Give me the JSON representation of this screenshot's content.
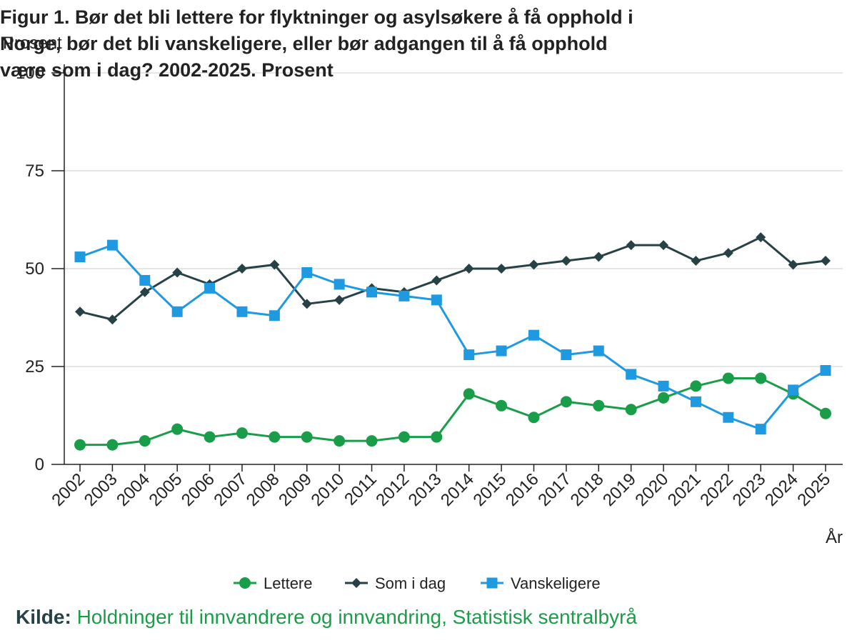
{
  "title": "Figur 1. Bør det bli lettere for flyktninger og asylsøkere å få opphold i Norge, bør det bli vanskeligere, eller bør adgangen til å få opphold være som i dag? 2002-2025. Prosent",
  "source": {
    "label": "Kilde:",
    "text": "Holdninger til innvandrere og innvandring, Statistisk sentralbyrå"
  },
  "chart_data": {
    "type": "line",
    "ylabel": "Prosent",
    "xlabel": "År",
    "ylim": [
      0,
      100
    ],
    "y_ticks": [
      0,
      25,
      50,
      75,
      100
    ],
    "grid": true,
    "legend_position": "bottom",
    "categories": [
      "2002",
      "2003",
      "2004",
      "2005",
      "2006",
      "2007",
      "2008",
      "2009",
      "2010",
      "2011",
      "2012",
      "2013",
      "2014",
      "2015",
      "2016",
      "2017",
      "2018",
      "2019",
      "2020",
      "2021",
      "2022",
      "2023",
      "2024",
      "2025"
    ],
    "series": [
      {
        "name": "Lettere",
        "color": "#1a9d49",
        "marker": "circle",
        "values": [
          5,
          5,
          6,
          9,
          7,
          8,
          7,
          7,
          6,
          6,
          7,
          7,
          18,
          15,
          12,
          16,
          15,
          14,
          17,
          20,
          22,
          22,
          18,
          13
        ]
      },
      {
        "name": "Som i dag",
        "color": "#274247",
        "marker": "diamond",
        "values": [
          39,
          37,
          44,
          49,
          46,
          50,
          51,
          41,
          42,
          45,
          44,
          47,
          50,
          50,
          51,
          52,
          53,
          56,
          56,
          52,
          54,
          58,
          51,
          52
        ]
      },
      {
        "name": "Vanskeligere",
        "color": "#1f9ae0",
        "marker": "square",
        "values": [
          53,
          56,
          47,
          39,
          45,
          39,
          38,
          49,
          46,
          44,
          43,
          42,
          28,
          29,
          33,
          28,
          29,
          23,
          20,
          16,
          12,
          9,
          19,
          24
        ]
      }
    ]
  }
}
